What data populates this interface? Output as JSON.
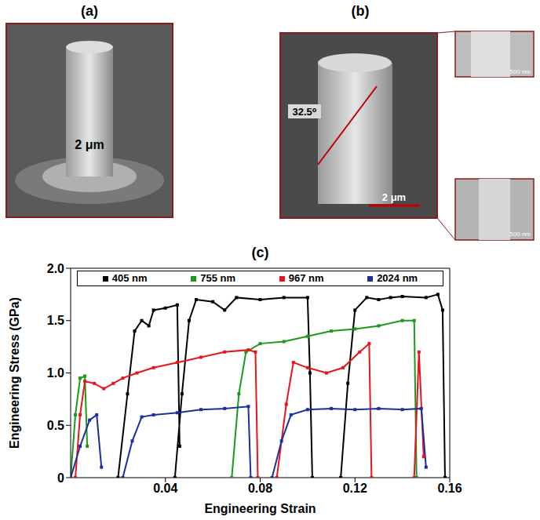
{
  "images": {
    "a": {
      "label": "(a)",
      "scale_text": "2 μm"
    },
    "b": {
      "label": "(b)",
      "angle": "32.5⁰",
      "scale_bar": "2 μm",
      "insets": [
        "500 nm",
        "500 nm"
      ]
    }
  },
  "chart_data": {
    "type": "line",
    "title": "(c)",
    "x_label": "Engineering Strain",
    "y_label": "Engineering Stress (GPa)",
    "xlim": [
      0,
      0.16
    ],
    "xticks": [
      0.04,
      0.08,
      0.12,
      0.16
    ],
    "ylim": [
      0,
      2
    ],
    "yticks": [
      0,
      0.5,
      {
        "value": 1,
        "label": "1.0"
      },
      1.5,
      {
        "value": 2,
        "label": "2.0"
      }
    ],
    "legend": "top",
    "marker": "square",
    "series": [
      {
        "name": "405 nm",
        "color": "#000000",
        "x": [
          0.02,
          0.024,
          0.027,
          0.03,
          0.033,
          0.035,
          0.04,
          0.045,
          0.046,
          0.044,
          0.044,
          0.047,
          0.05,
          0.053,
          0.06,
          0.065,
          0.07,
          0.08,
          0.09,
          0.1,
          0.101,
          0.102,
          0.102,
          0.114,
          0.117,
          0.12,
          0.125,
          0.13,
          0.135,
          0.14,
          0.15,
          0.155,
          0.157,
          0.158
        ],
        "values": [
          0,
          0.8,
          1.4,
          1.5,
          1.45,
          1.6,
          1.62,
          1.65,
          0.3,
          null,
          0,
          0.8,
          1.5,
          1.7,
          1.68,
          1.6,
          1.72,
          1.7,
          1.72,
          1.72,
          1.0,
          0,
          null,
          0,
          0.9,
          1.6,
          1.72,
          1.7,
          1.72,
          1.73,
          1.72,
          1.75,
          1.6,
          0
        ]
      },
      {
        "name": "755 nm",
        "color": "#1a9a1a",
        "x": [
          0,
          0.002,
          0.004,
          0.006,
          0.007,
          0.068,
          0.068,
          0.071,
          0.074,
          0.08,
          0.09,
          0.1,
          0.11,
          0.12,
          0.13,
          0.14,
          0.145,
          0.146
        ],
        "values": [
          0,
          0.6,
          0.95,
          0.97,
          0.3,
          null,
          0,
          0.8,
          1.2,
          1.28,
          1.3,
          1.35,
          1.4,
          1.42,
          1.45,
          1.5,
          1.5,
          0
        ]
      },
      {
        "name": "967 nm",
        "color": "#e8141b",
        "x": [
          0.002,
          0.004,
          0.006,
          0.01,
          0.014,
          0.018,
          0.022,
          0.028,
          0.035,
          0.045,
          0.055,
          0.065,
          0.075,
          0.078,
          0.079,
          0.087,
          0.087,
          0.091,
          0.094,
          0.1,
          0.108,
          0.115,
          0.122,
          0.126,
          0.127,
          0.145,
          0.145,
          0.147,
          0.149
        ],
        "values": [
          0,
          0.6,
          0.92,
          0.9,
          0.85,
          0.9,
          0.95,
          1.0,
          1.05,
          1.1,
          1.15,
          1.2,
          1.22,
          1.2,
          0,
          null,
          0,
          0.7,
          1.1,
          1.05,
          1.0,
          1.05,
          1.2,
          1.28,
          0,
          null,
          0,
          1.2,
          0.2
        ]
      },
      {
        "name": "2024 nm",
        "color": "#1c2fa0",
        "x": [
          0,
          0.004,
          0.008,
          0.011,
          0.013,
          0.022,
          0.022,
          0.026,
          0.03,
          0.035,
          0.045,
          0.055,
          0.065,
          0.075,
          0.076,
          0.085,
          0.085,
          0.089,
          0.093,
          0.1,
          0.11,
          0.12,
          0.13,
          0.14,
          0.148,
          0.15
        ],
        "values": [
          0,
          0.3,
          0.55,
          0.6,
          0.1,
          null,
          0,
          0.35,
          0.58,
          0.6,
          0.62,
          0.65,
          0.66,
          0.68,
          0,
          null,
          0,
          0.35,
          0.6,
          0.65,
          0.66,
          0.65,
          0.66,
          0.65,
          0.66,
          0.1
        ]
      }
    ]
  }
}
